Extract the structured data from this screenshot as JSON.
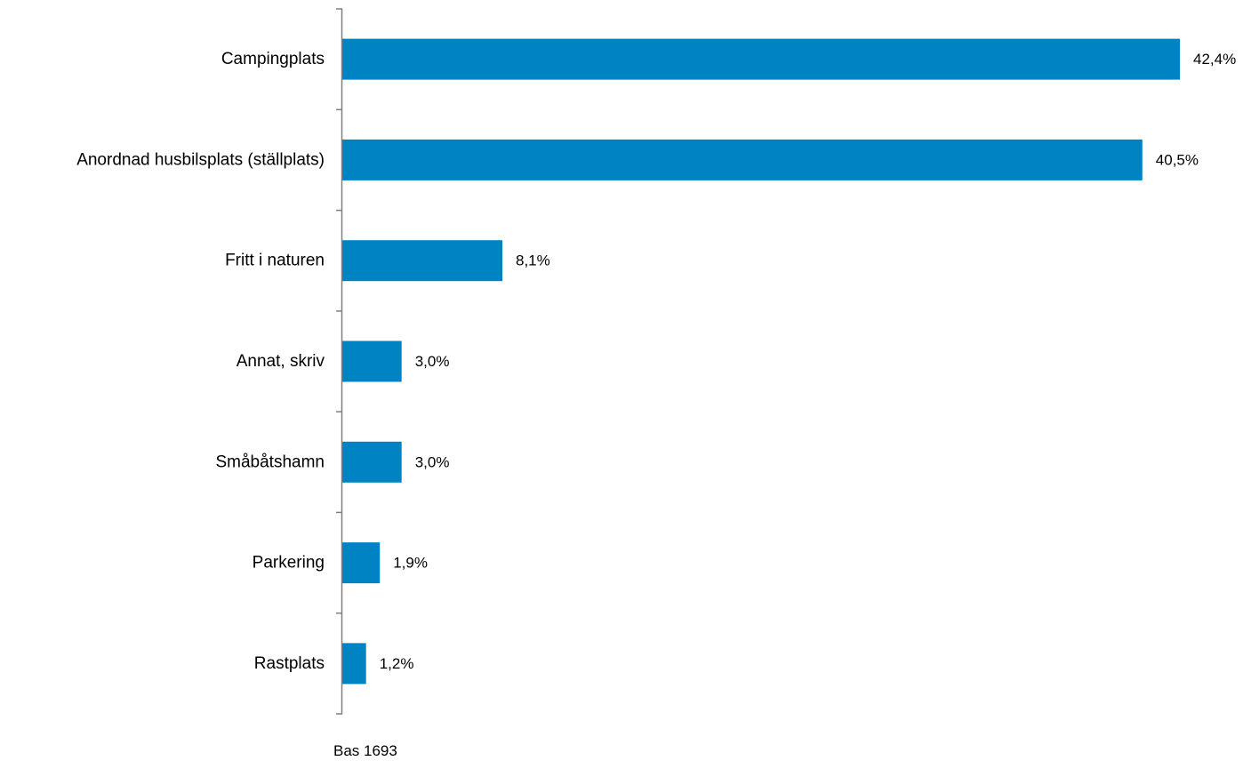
{
  "chart_data": {
    "type": "bar",
    "orientation": "horizontal",
    "categories": [
      "Campingplats",
      "Anordnad husbilsplats (ställplats)",
      "Fritt i naturen",
      "Annat, skriv",
      "Småbåtshamn",
      "Parkering",
      "Rastplats"
    ],
    "values": [
      42.4,
      40.5,
      8.1,
      3.0,
      3.0,
      1.9,
      1.2
    ],
    "value_labels": [
      "42,4%",
      "40,5%",
      "8,1%",
      "3,0%",
      "3,0%",
      "1,9%",
      "1,2%"
    ],
    "unit": "%",
    "bar_color": "#0083C3",
    "axis_color": "#7F7F7F",
    "xlim": [
      0,
      45
    ],
    "grid": false,
    "legend": "none",
    "footnote": "Bas 1693"
  }
}
